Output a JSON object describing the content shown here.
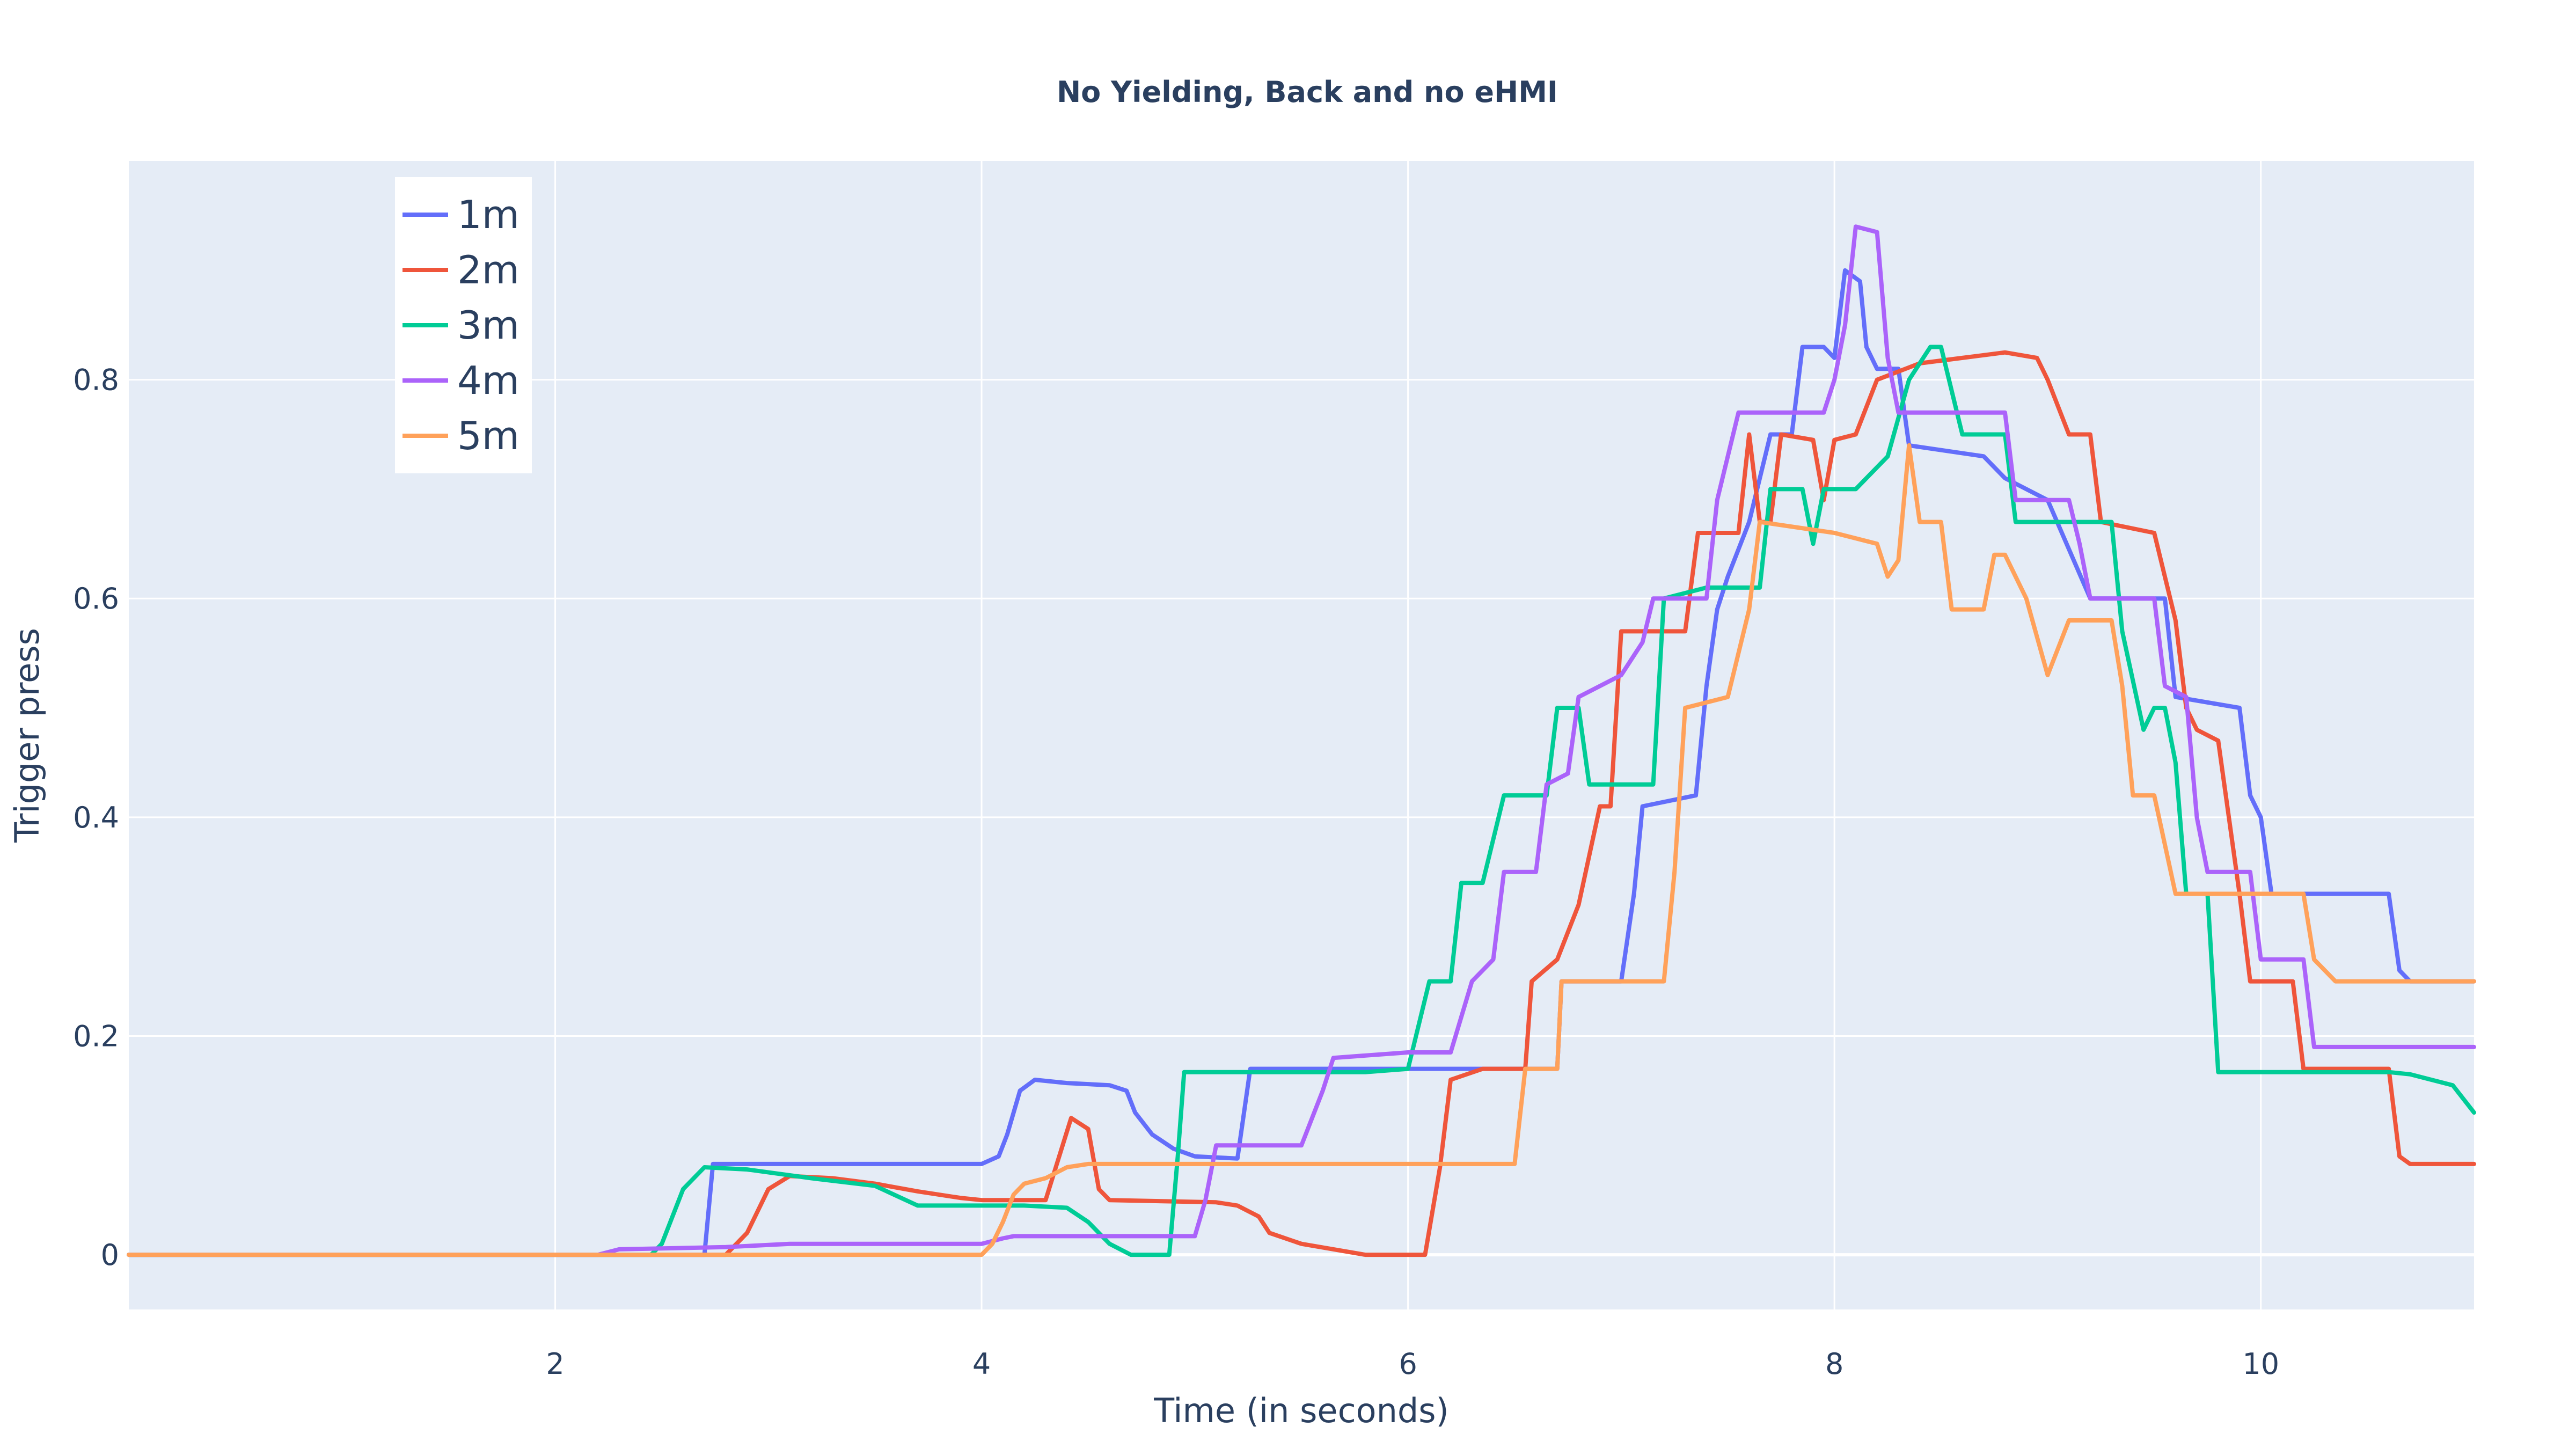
{
  "chart_data": {
    "type": "line",
    "title": "No Yielding, Back and no eHMI",
    "xlabel": "Time (in seconds)",
    "ylabel": "Trigger press",
    "xlim": [
      0,
      11
    ],
    "ylim": [
      -0.05,
      1.0
    ],
    "x_ticks": [
      2,
      4,
      6,
      8,
      10
    ],
    "x_tick_labels": [
      "2",
      "4",
      "6",
      "8",
      "10"
    ],
    "y_ticks": [
      0,
      0.2,
      0.4,
      0.6,
      0.8
    ],
    "y_tick_labels": [
      "0",
      "0.2",
      "0.4",
      "0.6",
      "0.8"
    ],
    "grid": true,
    "legend_position": "top-left",
    "plot_background": "#e5ecf6",
    "series": [
      {
        "name": "1m",
        "color": "#636efa",
        "points": [
          [
            0,
            0
          ],
          [
            2.1,
            0
          ],
          [
            2.7,
            0
          ],
          [
            2.74,
            0.083
          ],
          [
            4.0,
            0.083
          ],
          [
            4.08,
            0.09
          ],
          [
            4.12,
            0.11
          ],
          [
            4.18,
            0.15
          ],
          [
            4.25,
            0.16
          ],
          [
            4.4,
            0.157
          ],
          [
            4.6,
            0.155
          ],
          [
            4.68,
            0.15
          ],
          [
            4.72,
            0.13
          ],
          [
            4.8,
            0.11
          ],
          [
            4.9,
            0.097
          ],
          [
            5.0,
            0.09
          ],
          [
            5.2,
            0.088
          ],
          [
            5.26,
            0.17
          ],
          [
            6.7,
            0.17
          ],
          [
            6.72,
            0.25
          ],
          [
            7.0,
            0.25
          ],
          [
            7.06,
            0.33
          ],
          [
            7.1,
            0.41
          ],
          [
            7.35,
            0.42
          ],
          [
            7.4,
            0.52
          ],
          [
            7.45,
            0.59
          ],
          [
            7.5,
            0.62
          ],
          [
            7.6,
            0.67
          ],
          [
            7.7,
            0.75
          ],
          [
            7.8,
            0.75
          ],
          [
            7.85,
            0.83
          ],
          [
            7.95,
            0.83
          ],
          [
            8.0,
            0.82
          ],
          [
            8.05,
            0.9
          ],
          [
            8.12,
            0.89
          ],
          [
            8.15,
            0.83
          ],
          [
            8.2,
            0.81
          ],
          [
            8.3,
            0.81
          ],
          [
            8.35,
            0.74
          ],
          [
            8.7,
            0.73
          ],
          [
            8.8,
            0.71
          ],
          [
            9.0,
            0.69
          ],
          [
            9.2,
            0.6
          ],
          [
            9.55,
            0.6
          ],
          [
            9.6,
            0.51
          ],
          [
            9.9,
            0.5
          ],
          [
            9.95,
            0.42
          ],
          [
            10.0,
            0.4
          ],
          [
            10.05,
            0.33
          ],
          [
            10.6,
            0.33
          ],
          [
            10.65,
            0.26
          ],
          [
            10.7,
            0.25
          ],
          [
            11,
            0.25
          ]
        ]
      },
      {
        "name": "2m",
        "color": "#ef553b",
        "points": [
          [
            0,
            0
          ],
          [
            2.8,
            0
          ],
          [
            2.9,
            0.02
          ],
          [
            3.0,
            0.06
          ],
          [
            3.1,
            0.072
          ],
          [
            3.3,
            0.07
          ],
          [
            3.5,
            0.065
          ],
          [
            3.7,
            0.058
          ],
          [
            3.9,
            0.052
          ],
          [
            4.0,
            0.05
          ],
          [
            4.3,
            0.05
          ],
          [
            4.42,
            0.125
          ],
          [
            4.5,
            0.115
          ],
          [
            4.55,
            0.06
          ],
          [
            4.6,
            0.05
          ],
          [
            5.1,
            0.048
          ],
          [
            5.2,
            0.045
          ],
          [
            5.3,
            0.035
          ],
          [
            5.35,
            0.02
          ],
          [
            5.5,
            0.01
          ],
          [
            5.8,
            0.0
          ],
          [
            6.08,
            0.0
          ],
          [
            6.15,
            0.08
          ],
          [
            6.2,
            0.16
          ],
          [
            6.35,
            0.17
          ],
          [
            6.55,
            0.17
          ],
          [
            6.58,
            0.25
          ],
          [
            6.7,
            0.27
          ],
          [
            6.8,
            0.32
          ],
          [
            6.9,
            0.41
          ],
          [
            6.95,
            0.41
          ],
          [
            7.0,
            0.57
          ],
          [
            7.3,
            0.57
          ],
          [
            7.36,
            0.66
          ],
          [
            7.55,
            0.66
          ],
          [
            7.6,
            0.75
          ],
          [
            7.65,
            0.67
          ],
          [
            7.7,
            0.67
          ],
          [
            7.75,
            0.75
          ],
          [
            7.9,
            0.745
          ],
          [
            7.95,
            0.69
          ],
          [
            8.0,
            0.745
          ],
          [
            8.1,
            0.75
          ],
          [
            8.2,
            0.8
          ],
          [
            8.4,
            0.815
          ],
          [
            8.6,
            0.82
          ],
          [
            8.8,
            0.825
          ],
          [
            8.95,
            0.82
          ],
          [
            9.0,
            0.8
          ],
          [
            9.1,
            0.75
          ],
          [
            9.2,
            0.75
          ],
          [
            9.25,
            0.67
          ],
          [
            9.5,
            0.66
          ],
          [
            9.6,
            0.58
          ],
          [
            9.65,
            0.5
          ],
          [
            9.7,
            0.48
          ],
          [
            9.8,
            0.47
          ],
          [
            9.9,
            0.33
          ],
          [
            9.95,
            0.25
          ],
          [
            10.15,
            0.25
          ],
          [
            10.2,
            0.17
          ],
          [
            10.6,
            0.17
          ],
          [
            10.65,
            0.09
          ],
          [
            10.7,
            0.083
          ],
          [
            11,
            0.083
          ]
        ]
      },
      {
        "name": "3m",
        "color": "#00cc96",
        "points": [
          [
            0,
            0
          ],
          [
            2.45,
            0
          ],
          [
            2.5,
            0.01
          ],
          [
            2.6,
            0.06
          ],
          [
            2.7,
            0.08
          ],
          [
            2.9,
            0.078
          ],
          [
            3.2,
            0.07
          ],
          [
            3.5,
            0.063
          ],
          [
            3.7,
            0.045
          ],
          [
            3.9,
            0.045
          ],
          [
            4.2,
            0.045
          ],
          [
            4.4,
            0.043
          ],
          [
            4.5,
            0.03
          ],
          [
            4.6,
            0.01
          ],
          [
            4.7,
            0.0
          ],
          [
            4.88,
            0.0
          ],
          [
            4.92,
            0.09
          ],
          [
            4.95,
            0.167
          ],
          [
            5.8,
            0.167
          ],
          [
            6.0,
            0.17
          ],
          [
            6.1,
            0.25
          ],
          [
            6.2,
            0.25
          ],
          [
            6.25,
            0.34
          ],
          [
            6.35,
            0.34
          ],
          [
            6.45,
            0.42
          ],
          [
            6.65,
            0.42
          ],
          [
            6.7,
            0.5
          ],
          [
            6.8,
            0.5
          ],
          [
            6.85,
            0.43
          ],
          [
            7.15,
            0.43
          ],
          [
            7.2,
            0.6
          ],
          [
            7.4,
            0.61
          ],
          [
            7.65,
            0.61
          ],
          [
            7.7,
            0.7
          ],
          [
            7.85,
            0.7
          ],
          [
            7.9,
            0.65
          ],
          [
            7.95,
            0.7
          ],
          [
            8.1,
            0.7
          ],
          [
            8.25,
            0.73
          ],
          [
            8.35,
            0.8
          ],
          [
            8.45,
            0.83
          ],
          [
            8.5,
            0.83
          ],
          [
            8.6,
            0.75
          ],
          [
            8.8,
            0.75
          ],
          [
            8.85,
            0.67
          ],
          [
            9.3,
            0.67
          ],
          [
            9.35,
            0.57
          ],
          [
            9.45,
            0.48
          ],
          [
            9.5,
            0.5
          ],
          [
            9.55,
            0.5
          ],
          [
            9.6,
            0.45
          ],
          [
            9.65,
            0.33
          ],
          [
            9.75,
            0.33
          ],
          [
            9.8,
            0.167
          ],
          [
            10.6,
            0.167
          ],
          [
            10.7,
            0.165
          ],
          [
            10.9,
            0.155
          ],
          [
            11,
            0.13
          ]
        ]
      },
      {
        "name": "4m",
        "color": "#ab63fa",
        "points": [
          [
            0,
            0
          ],
          [
            2.2,
            0
          ],
          [
            2.3,
            0.005
          ],
          [
            2.8,
            0.007
          ],
          [
            3.1,
            0.01
          ],
          [
            3.5,
            0.01
          ],
          [
            4.0,
            0.01
          ],
          [
            4.1,
            0.015
          ],
          [
            4.15,
            0.017
          ],
          [
            4.7,
            0.017
          ],
          [
            5.0,
            0.017
          ],
          [
            5.05,
            0.05
          ],
          [
            5.1,
            0.1
          ],
          [
            5.5,
            0.1
          ],
          [
            5.6,
            0.15
          ],
          [
            5.65,
            0.18
          ],
          [
            6.0,
            0.185
          ],
          [
            6.2,
            0.185
          ],
          [
            6.3,
            0.25
          ],
          [
            6.4,
            0.27
          ],
          [
            6.45,
            0.35
          ],
          [
            6.6,
            0.35
          ],
          [
            6.65,
            0.43
          ],
          [
            6.75,
            0.44
          ],
          [
            6.8,
            0.51
          ],
          [
            6.9,
            0.52
          ],
          [
            7.0,
            0.53
          ],
          [
            7.1,
            0.56
          ],
          [
            7.15,
            0.6
          ],
          [
            7.4,
            0.6
          ],
          [
            7.45,
            0.69
          ],
          [
            7.5,
            0.73
          ],
          [
            7.55,
            0.77
          ],
          [
            7.95,
            0.77
          ],
          [
            8.0,
            0.8
          ],
          [
            8.05,
            0.85
          ],
          [
            8.1,
            0.94
          ],
          [
            8.2,
            0.935
          ],
          [
            8.25,
            0.82
          ],
          [
            8.3,
            0.77
          ],
          [
            8.8,
            0.77
          ],
          [
            8.85,
            0.69
          ],
          [
            9.1,
            0.69
          ],
          [
            9.15,
            0.65
          ],
          [
            9.2,
            0.6
          ],
          [
            9.5,
            0.6
          ],
          [
            9.55,
            0.52
          ],
          [
            9.65,
            0.51
          ],
          [
            9.7,
            0.4
          ],
          [
            9.75,
            0.35
          ],
          [
            9.95,
            0.35
          ],
          [
            10.0,
            0.27
          ],
          [
            10.2,
            0.27
          ],
          [
            10.25,
            0.19
          ],
          [
            11,
            0.19
          ]
        ]
      },
      {
        "name": "5m",
        "color": "#ffa15a",
        "points": [
          [
            0,
            0
          ],
          [
            4.0,
            0
          ],
          [
            4.05,
            0.01
          ],
          [
            4.1,
            0.03
          ],
          [
            4.15,
            0.055
          ],
          [
            4.2,
            0.065
          ],
          [
            4.3,
            0.07
          ],
          [
            4.4,
            0.08
          ],
          [
            4.5,
            0.083
          ],
          [
            6.5,
            0.083
          ],
          [
            6.55,
            0.17
          ],
          [
            6.7,
            0.17
          ],
          [
            6.72,
            0.25
          ],
          [
            7.2,
            0.25
          ],
          [
            7.25,
            0.35
          ],
          [
            7.3,
            0.5
          ],
          [
            7.5,
            0.51
          ],
          [
            7.55,
            0.55
          ],
          [
            7.6,
            0.59
          ],
          [
            7.65,
            0.67
          ],
          [
            8.0,
            0.66
          ],
          [
            8.2,
            0.65
          ],
          [
            8.25,
            0.62
          ],
          [
            8.3,
            0.635
          ],
          [
            8.35,
            0.74
          ],
          [
            8.4,
            0.67
          ],
          [
            8.5,
            0.67
          ],
          [
            8.55,
            0.59
          ],
          [
            8.7,
            0.59
          ],
          [
            8.75,
            0.64
          ],
          [
            8.8,
            0.64
          ],
          [
            8.9,
            0.6
          ],
          [
            9.0,
            0.53
          ],
          [
            9.1,
            0.58
          ],
          [
            9.3,
            0.58
          ],
          [
            9.35,
            0.52
          ],
          [
            9.4,
            0.42
          ],
          [
            9.5,
            0.42
          ],
          [
            9.6,
            0.33
          ],
          [
            10.2,
            0.33
          ],
          [
            10.25,
            0.27
          ],
          [
            10.35,
            0.25
          ],
          [
            11,
            0.25
          ]
        ]
      }
    ]
  }
}
